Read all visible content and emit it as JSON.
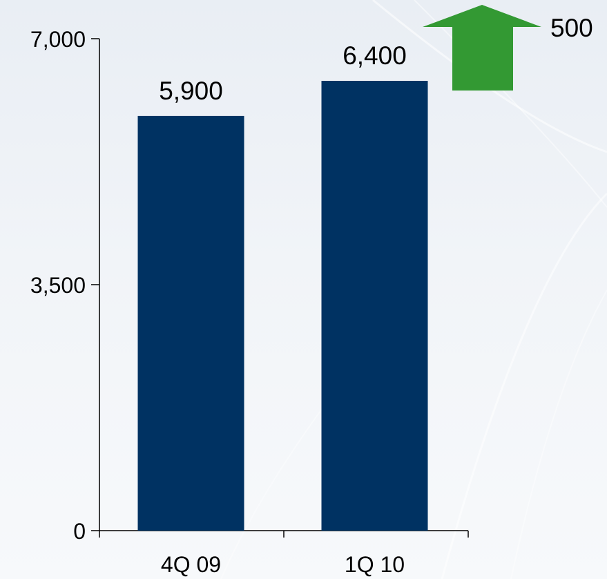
{
  "chart_data": {
    "type": "bar",
    "categories": [
      "4Q 09",
      "1Q 10"
    ],
    "values": [
      5900,
      6400
    ],
    "data_labels": [
      "5,900",
      "6,400"
    ],
    "ylim": [
      0,
      7000
    ],
    "yticks": [
      0,
      3500,
      7000
    ],
    "ytick_labels": [
      "0",
      "3,500",
      "7,000"
    ],
    "title": "",
    "xlabel": "",
    "ylabel": "",
    "grid": false,
    "annotation": {
      "label": "500",
      "shape": "up-arrow",
      "color": "#339933"
    },
    "colors": {
      "bar": "#003262",
      "axis": "#000000"
    }
  }
}
